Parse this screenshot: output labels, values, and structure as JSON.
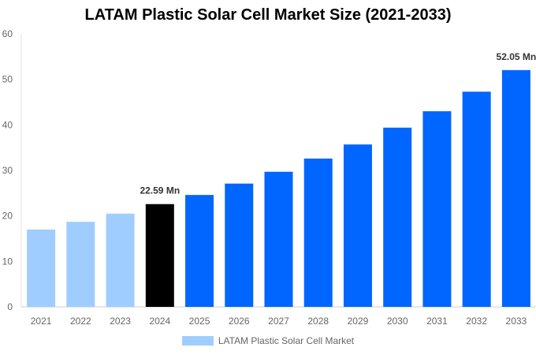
{
  "chart_data": {
    "type": "bar",
    "title": "LATAM Plastic Solar Cell Market Size (2021-2033)",
    "categories": [
      "2021",
      "2022",
      "2023",
      "2024",
      "2025",
      "2026",
      "2027",
      "2028",
      "2029",
      "2030",
      "2031",
      "2032",
      "2033"
    ],
    "series": [
      {
        "name": "LATAM Plastic Solar Cell Market",
        "values": [
          17.0,
          18.7,
          20.5,
          22.59,
          24.6,
          27.1,
          29.7,
          32.6,
          35.7,
          39.4,
          43.0,
          47.3,
          52.05
        ]
      }
    ],
    "data_labels": {
      "3": "22.59 Mn",
      "12": "52.05 Mn"
    },
    "ylim": [
      0,
      60
    ],
    "yticks": [
      0,
      10,
      20,
      30,
      40,
      50,
      60
    ],
    "grid": false,
    "legend": "bottom",
    "colors": {
      "historical": "#a0cdff",
      "current": "#000000",
      "forecast": "#0066ff"
    }
  }
}
